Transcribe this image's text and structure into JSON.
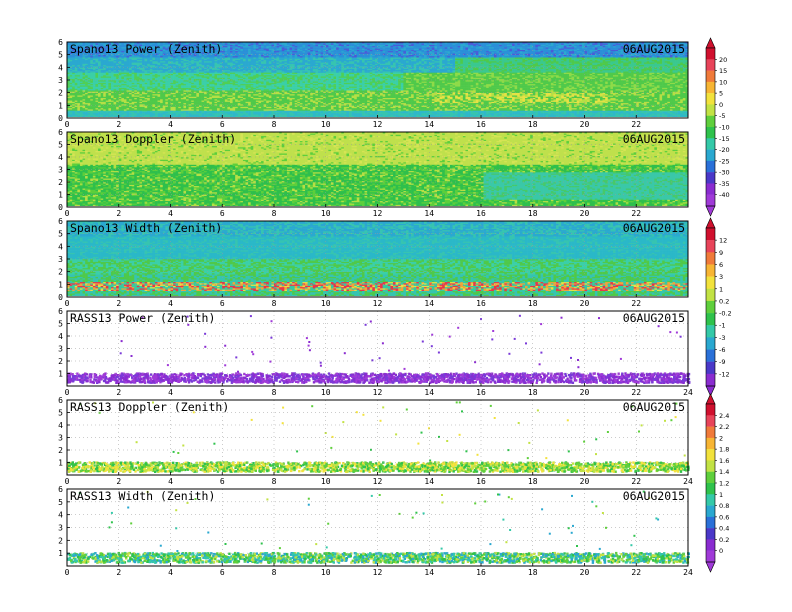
{
  "chart_data": [
    {
      "type": "heatmap",
      "title": "Spano13 Power (Zenith)",
      "date": "06AUG2015",
      "variable": "power",
      "x_ticks": [
        "0",
        "2",
        "4",
        "6",
        "8",
        "10",
        "12",
        "14",
        "16",
        "18",
        "20",
        "22"
      ],
      "xlim": [
        0,
        24
      ],
      "y_ticks": [
        "0",
        "1",
        "2",
        "3",
        "4",
        "5",
        "6"
      ],
      "ylim": [
        0,
        6
      ],
      "grid": true
    },
    {
      "type": "heatmap",
      "title": "Spano13 Doppler (Zenith)",
      "date": "06AUG2015",
      "variable": "doppler",
      "x_ticks": [
        "0",
        "2",
        "4",
        "6",
        "8",
        "10",
        "12",
        "14",
        "16",
        "18",
        "20",
        "22"
      ],
      "xlim": [
        0,
        24
      ],
      "y_ticks": [
        "0",
        "1",
        "2",
        "3",
        "4",
        "5",
        "6"
      ],
      "ylim": [
        0,
        6
      ],
      "grid": true
    },
    {
      "type": "heatmap",
      "title": "Spano13 Width (Zenith)",
      "date": "06AUG2015",
      "variable": "width",
      "x_ticks": [
        "0",
        "2",
        "4",
        "6",
        "8",
        "10",
        "12",
        "14",
        "16",
        "18",
        "20",
        "22"
      ],
      "xlim": [
        0,
        24
      ],
      "y_ticks": [
        "0",
        "1",
        "2",
        "3",
        "4",
        "5",
        "6"
      ],
      "ylim": [
        0,
        6
      ],
      "grid": true
    },
    {
      "type": "scatter",
      "title": "RASS13 Power (Zenith)",
      "date": "06AUG2015",
      "variable": "rass_power",
      "x_ticks": [
        "0",
        "2",
        "4",
        "6",
        "8",
        "10",
        "12",
        "14",
        "16",
        "18",
        "20",
        "22",
        "24"
      ],
      "xlim": [
        0,
        24
      ],
      "y_ticks": [
        "1",
        "2",
        "3",
        "4",
        "5",
        "6"
      ],
      "ylim": [
        0,
        6
      ],
      "grid": true
    },
    {
      "type": "scatter",
      "title": "RASS13 Doppler (Zenith)",
      "date": "06AUG2015",
      "variable": "rass_doppler",
      "x_ticks": [
        "0",
        "2",
        "4",
        "6",
        "8",
        "10",
        "12",
        "14",
        "16",
        "18",
        "20",
        "22",
        "24"
      ],
      "xlim": [
        0,
        24
      ],
      "y_ticks": [
        "1",
        "2",
        "3",
        "4",
        "5",
        "6"
      ],
      "ylim": [
        0,
        6
      ],
      "grid": true
    },
    {
      "type": "scatter",
      "title": "RASS13 Width (Zenith)",
      "date": "06AUG2015",
      "variable": "rass_width",
      "x_ticks": [
        "0",
        "2",
        "4",
        "6",
        "8",
        "10",
        "12",
        "14",
        "16",
        "18",
        "20",
        "22",
        "24"
      ],
      "xlim": [
        0,
        24
      ],
      "y_ticks": [
        "1",
        "2",
        "3",
        "4",
        "5",
        "6"
      ],
      "ylim": [
        0,
        6
      ],
      "grid": true
    }
  ],
  "colorbars": [
    {
      "labels": [
        "20",
        "15",
        "10",
        "5",
        "0",
        "-5",
        "-10",
        "-15",
        "-20",
        "-25",
        "-30",
        "-35",
        "-40"
      ],
      "colors": [
        "#d0102e",
        "#e8445a",
        "#f07a3a",
        "#f7b534",
        "#f2e23c",
        "#c2e244",
        "#5fcf3c",
        "#2fc24c",
        "#34c9a8",
        "#2aa8d0",
        "#2a70d8",
        "#4a38c8",
        "#8a2cd0",
        "#a03ad8"
      ]
    },
    {
      "labels": [
        "12",
        "9",
        "6",
        "3",
        "1",
        "0.2",
        "-0.2",
        "-1",
        "-3",
        "-6",
        "-9",
        "-12"
      ],
      "colors": [
        "#d0102e",
        "#e8445a",
        "#f07a3a",
        "#f7b534",
        "#f2e23c",
        "#c2e244",
        "#5fcf3c",
        "#2fc24c",
        "#34c9a8",
        "#2aa8d0",
        "#2a70d8",
        "#4a38c8",
        "#8a2cd0"
      ]
    },
    {
      "labels": [
        "2.4",
        "2.2",
        "2",
        "1.8",
        "1.6",
        "1.4",
        "1.2",
        "1",
        "0.8",
        "0.6",
        "0.4",
        "0.2",
        "0"
      ],
      "colors": [
        "#d0102e",
        "#e8445a",
        "#f07a3a",
        "#f7b534",
        "#f2e23c",
        "#c2e244",
        "#5fcf3c",
        "#2fc24c",
        "#34c9a8",
        "#2aa8d0",
        "#2a70d8",
        "#4a38c8",
        "#8a2cd0",
        "#a03ad8"
      ]
    }
  ]
}
